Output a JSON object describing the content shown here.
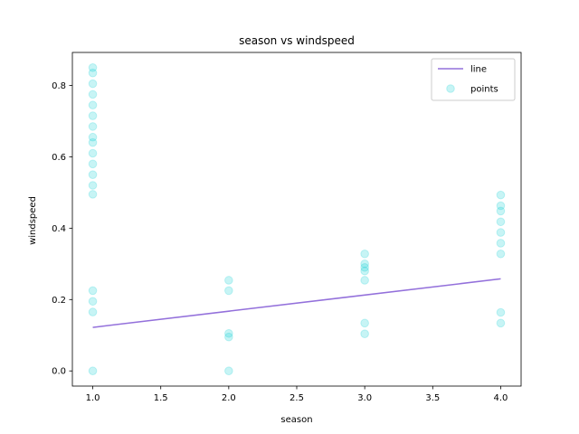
{
  "chart_data": {
    "type": "scatter",
    "title": "season vs windspeed",
    "xlabel": "season",
    "ylabel": "windspeed",
    "xlim": [
      0.85,
      4.15
    ],
    "ylim": [
      -0.0425,
      0.8925
    ],
    "xticks": [
      1.0,
      1.5,
      2.0,
      2.5,
      3.0,
      3.5,
      4.0
    ],
    "xtick_labels": [
      "1.0",
      "1.5",
      "2.0",
      "2.5",
      "3.0",
      "3.5",
      "4.0"
    ],
    "yticks": [
      0.0,
      0.2,
      0.4,
      0.6,
      0.8
    ],
    "ytick_labels": [
      "0.0",
      "0.2",
      "0.4",
      "0.6",
      "0.8"
    ],
    "grid": false,
    "legend_position": "top-right",
    "series": [
      {
        "name": "line",
        "kind": "line",
        "color": "#9370DB",
        "x": [
          1.0,
          4.0
        ],
        "y": [
          0.122,
          0.258
        ]
      },
      {
        "name": "points",
        "kind": "scatter",
        "color": "#00CED1",
        "points": [
          [
            1.0,
            0.85
          ],
          [
            1.0,
            0.835
          ],
          [
            1.0,
            0.805
          ],
          [
            1.0,
            0.775
          ],
          [
            1.0,
            0.745
          ],
          [
            1.0,
            0.715
          ],
          [
            1.0,
            0.685
          ],
          [
            1.0,
            0.655
          ],
          [
            1.0,
            0.64
          ],
          [
            1.0,
            0.61
          ],
          [
            1.0,
            0.58
          ],
          [
            1.0,
            0.55
          ],
          [
            1.0,
            0.52
          ],
          [
            1.0,
            0.495
          ],
          [
            1.0,
            0.225
          ],
          [
            1.0,
            0.195
          ],
          [
            1.0,
            0.165
          ],
          [
            1.0,
            0.0
          ],
          [
            2.0,
            0.254
          ],
          [
            2.0,
            0.225
          ],
          [
            2.0,
            0.105
          ],
          [
            2.0,
            0.095
          ],
          [
            2.0,
            0.0
          ],
          [
            3.0,
            0.328
          ],
          [
            3.0,
            0.3
          ],
          [
            3.0,
            0.29
          ],
          [
            3.0,
            0.28
          ],
          [
            3.0,
            0.254
          ],
          [
            3.0,
            0.134
          ],
          [
            3.0,
            0.104
          ],
          [
            4.0,
            0.493
          ],
          [
            4.0,
            0.463
          ],
          [
            4.0,
            0.448
          ],
          [
            4.0,
            0.418
          ],
          [
            4.0,
            0.388
          ],
          [
            4.0,
            0.358
          ],
          [
            4.0,
            0.328
          ],
          [
            4.0,
            0.164
          ],
          [
            4.0,
            0.134
          ]
        ]
      }
    ]
  }
}
